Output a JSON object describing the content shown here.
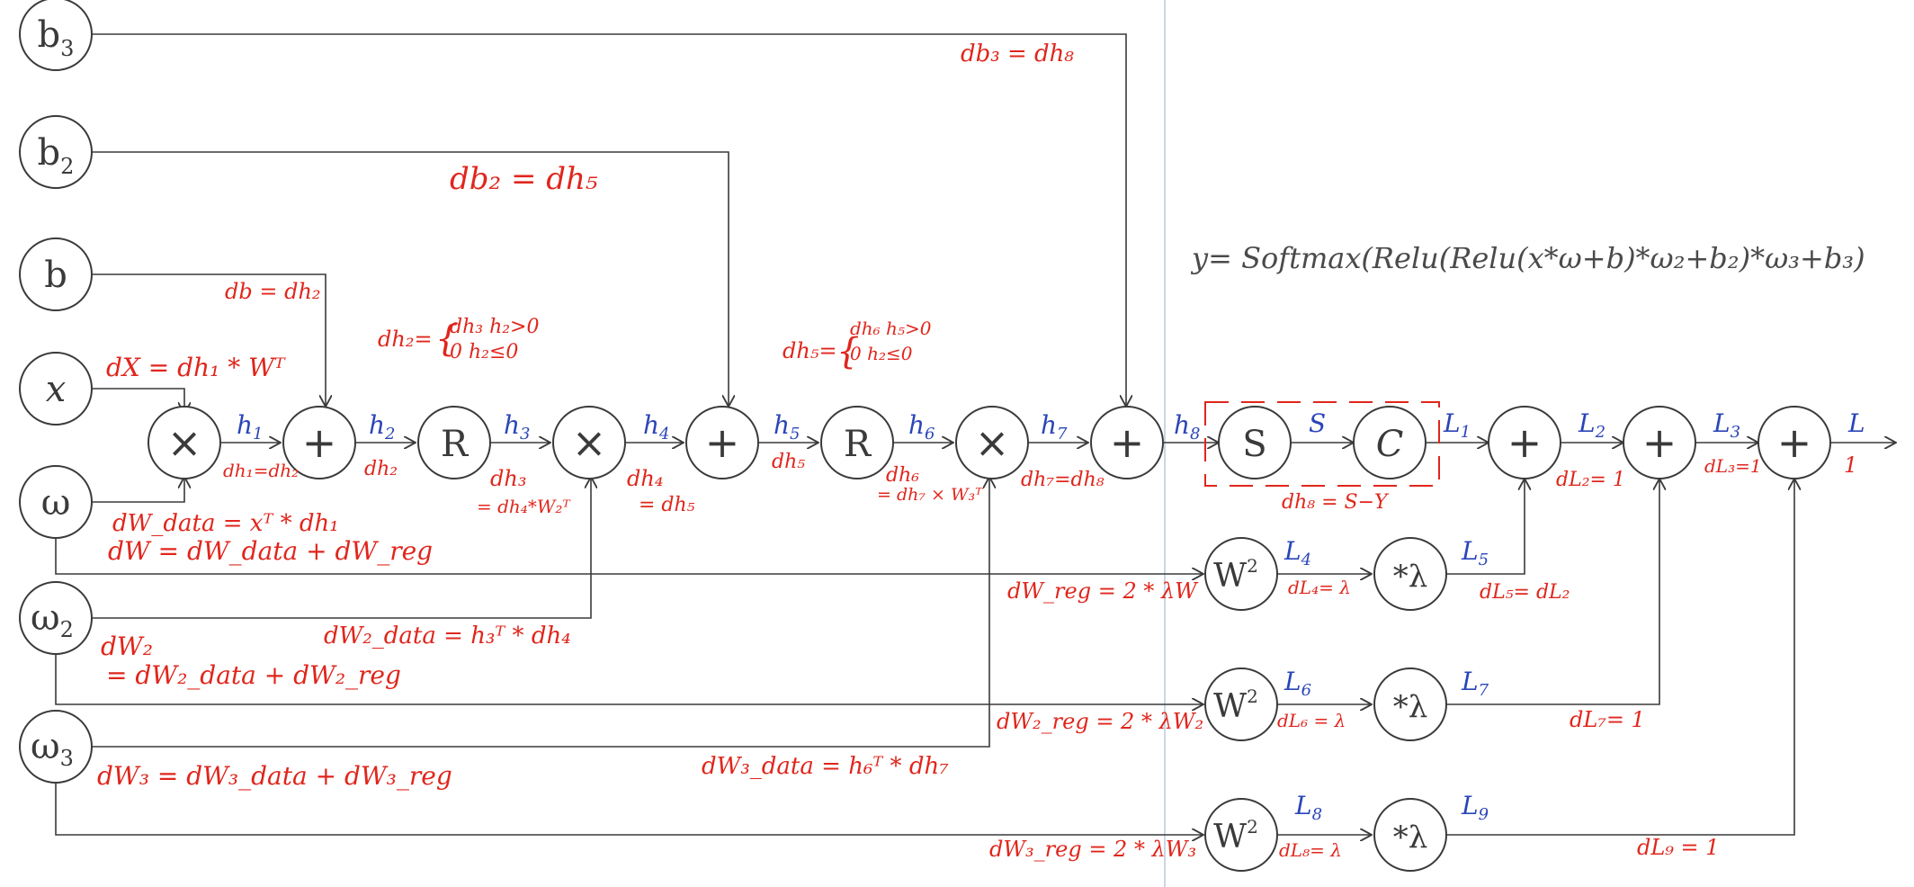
{
  "colors": {
    "stroke": "#3a3a3a",
    "blue_labels": "#2a45b8",
    "red_gradients": "#e0261c",
    "separator": "#b9c9dd"
  },
  "inputs": {
    "b3": [
      "b",
      "3"
    ],
    "b2": [
      "b",
      "2"
    ],
    "b": [
      "b",
      ""
    ],
    "x": [
      "x",
      ""
    ],
    "w": [
      "ω",
      ""
    ],
    "w2": [
      "ω",
      "2"
    ],
    "w3": [
      "ω",
      "3"
    ]
  },
  "ops": {
    "mul": "×",
    "add": "+",
    "relu": "R",
    "softmax": "S",
    "cost": "C",
    "square": [
      "W",
      "2"
    ],
    "lambda": "*λ"
  },
  "edges": {
    "h1": [
      "h",
      "1"
    ],
    "h2": [
      "h",
      "2"
    ],
    "h3": [
      "h",
      "3"
    ],
    "h4": [
      "h",
      "4"
    ],
    "h5": [
      "h",
      "5"
    ],
    "h6": [
      "h",
      "6"
    ],
    "h7": [
      "h",
      "7"
    ],
    "h8": [
      "h",
      "8"
    ],
    "s": "S",
    "l1": [
      "L",
      "1"
    ],
    "l2": [
      "L",
      "2"
    ],
    "l3": [
      "L",
      "3"
    ],
    "l": "L",
    "l4": [
      "L",
      "4"
    ],
    "l5": [
      "L",
      "5"
    ],
    "l6": [
      "L",
      "6"
    ],
    "l7": [
      "L",
      "7"
    ],
    "l8": [
      "L",
      "8"
    ],
    "l9": [
      "L",
      "9"
    ]
  },
  "formula": "y= Softmax(Relu(Relu(x*ω+b)*ω₂+b₂)*ω₃+b₃)",
  "gradients": {
    "db3": "db₃ = dh₈",
    "db2": "db₂ = dh₅",
    "db": "db = dh₂",
    "dx": "dX = dh₁ * Wᵀ",
    "dh2_lhs": "dh₂=",
    "dh2_c1": "dh₃   h₂>0",
    "dh2_c2": "0      h₂≤0",
    "dh5_lhs": "dh₅=",
    "dh5_c1": "dh₆  h₅>0",
    "dh5_c2": "0     h₂≤0",
    "dh1": "dh₁=dh₂",
    "dh2_under": "dh₂",
    "dh3_a": "dh₃",
    "dh3_b": "= dh₄*W₂ᵀ",
    "dh4_a": "dh₄",
    "dh4_b": "= dh₅",
    "dh5_under": "dh₅",
    "dh6_a": "dh₆",
    "dh6_b": "= dh₇ × W₃ᵀ",
    "dh7": "dh₇=dh₈",
    "dh8": "dh₈ = S−Y",
    "dl2": "dL₂= 1",
    "dl3": "dL₃=1",
    "one": "1",
    "dw_data": "dW_data = xᵀ * dh₁",
    "dw": "dW = dW_data + dW_reg",
    "dw2_data": "dW₂_data = h₃ᵀ * dh₄",
    "dw2_a": "dW₂",
    "dw2_b": "= dW₂_data + dW₂_reg",
    "dw3": "dW₃ = dW₃_data + dW₃_reg",
    "dw3_data": "dW₃_data = h₆ᵀ * dh₇",
    "dw_reg": "dW_reg = 2 * λW",
    "dw2_reg": "dW₂_reg = 2 * λW₂",
    "dw3_reg": "dW₃_reg = 2 * λW₃",
    "dl4": "dL₄= λ",
    "dl5": "dL₅= dL₂",
    "dl6": "dL₆ = λ",
    "dl7": "dL₇= 1",
    "dl8": "dL₈= λ",
    "dl9": "dL₉ = 1"
  }
}
